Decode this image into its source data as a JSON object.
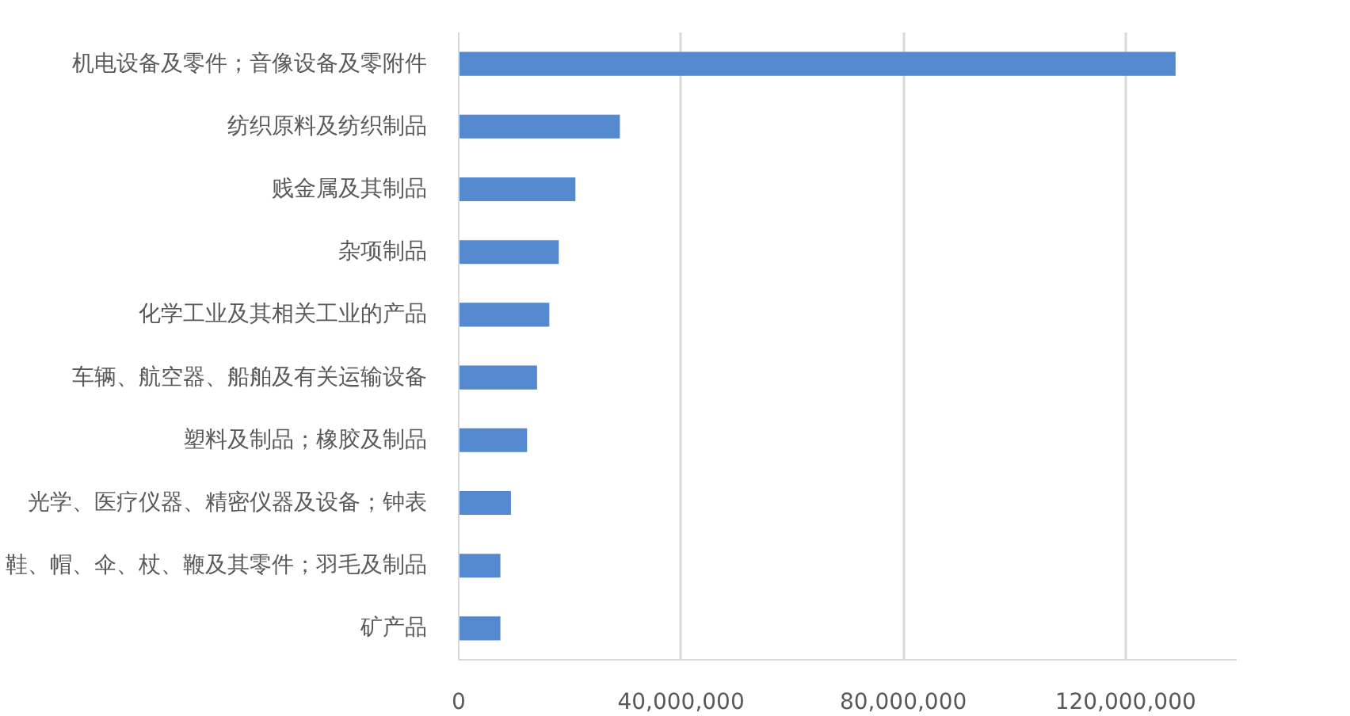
{
  "chart_data": {
    "type": "bar",
    "orientation": "horizontal",
    "categories": [
      "机电设备及零件；音像设备及零附件",
      "纺织原料及纺织制品",
      "贱金属及其制品",
      "杂项制品",
      "化学工业及其相关工业的产品",
      "车辆、航空器、船舶及有关运输设备",
      "塑料及制品；橡胶及制品",
      "光学、医疗仪器、精密仪器及设备；钟表",
      "鞋、帽、伞、杖、鞭及其零件；羽毛及制品",
      "矿产品"
    ],
    "values": [
      129000000,
      29000000,
      21000000,
      18000000,
      16300000,
      14100000,
      12300000,
      9400000,
      7500000,
      7500000
    ],
    "color": "#5589cf",
    "xlim": [
      0,
      140000000
    ],
    "xticks": [
      0,
      {
        "value": 40000000,
        "label": "40,000,000"
      },
      {
        "value": 80000000,
        "label": "80,000,000"
      },
      {
        "value": 120000000,
        "label": "120,000,000"
      }
    ],
    "grid": "x"
  }
}
